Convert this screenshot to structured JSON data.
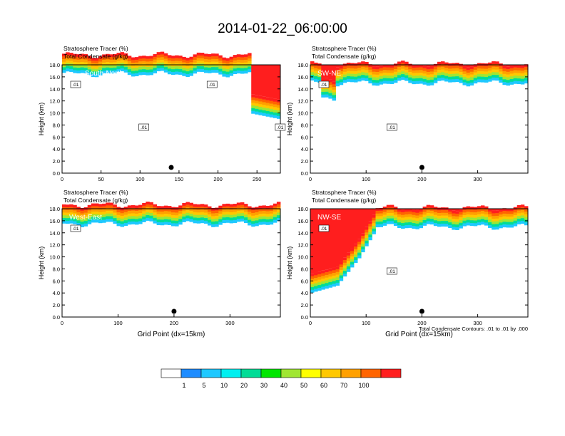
{
  "figure": {
    "title": "2014-01-22_06:00:00",
    "contour_note": "Total Condensate Contours: .01 to .01 by .000"
  },
  "colorbar": {
    "colors": [
      "#ffffff",
      "#1e8cff",
      "#1ec8ff",
      "#00f0f0",
      "#00dc96",
      "#00e600",
      "#a0e632",
      "#ffff00",
      "#ffc800",
      "#ffa000",
      "#ff6400",
      "#ff1e1e"
    ],
    "labels": [
      "1",
      "5",
      "10",
      "20",
      "30",
      "40",
      "50",
      "60",
      "70",
      "100"
    ]
  },
  "chart_data": [
    {
      "type": "heatmap",
      "title": "South-North",
      "subtitle_lines": [
        "Stratosphere Tracer   (%)",
        "Total Condensate   (g/kg)"
      ],
      "xlabel": "",
      "ylabel": "Height (km)",
      "xlim": [
        0,
        280
      ],
      "ylim": [
        0,
        18
      ],
      "xticks": [
        "0",
        "50",
        "100",
        "150",
        "200",
        "250"
      ],
      "yticks": [
        "0.0",
        "2.0",
        "4.0",
        "6.0",
        "8.0",
        "10.0",
        "12.0",
        "14.0",
        "16.0",
        "18.0"
      ],
      "marker_x": 140,
      "contour_labels": [
        ".01",
        ".01",
        ".01",
        ".01"
      ],
      "tracer_base_km": 16.5,
      "features": "stratospheric tracer 70-100% above 16.5 km; high-tracer intrusion to ~9 km near x=265-280"
    },
    {
      "type": "heatmap",
      "title": "SW-NE",
      "subtitle_lines": [
        "Stratosphere Tracer   (%)",
        "Total Condensate   (g/kg)"
      ],
      "xlabel": "",
      "ylabel": "Height (km)",
      "xlim": [
        0,
        390
      ],
      "ylim": [
        0,
        18
      ],
      "xticks": [
        "0",
        "100",
        "200",
        "300"
      ],
      "yticks": [
        "0.0",
        "2.0",
        "4.0",
        "6.0",
        "8.0",
        "10.0",
        "12.0",
        "14.0",
        "16.0",
        "18.0"
      ],
      "marker_x": 200,
      "contour_labels": [
        ".01",
        ".01"
      ],
      "tracer_base_km": 15.0,
      "features": "tracer layer 14-18 km with low-tracer patches near x=20 and x=330"
    },
    {
      "type": "heatmap",
      "title": "West-East",
      "subtitle_lines": [
        "Stratosphere Tracer   (%)",
        "Total Condensate   (g/kg)"
      ],
      "xlabel": "Grid Point (dx=15km)",
      "ylabel": "Height (km)",
      "xlim": [
        0,
        390
      ],
      "ylim": [
        0,
        18
      ],
      "xticks": [
        "0",
        "100",
        "200",
        "300"
      ],
      "yticks": [
        "0.0",
        "2.0",
        "4.0",
        "6.0",
        "8.0",
        "10.0",
        "12.0",
        "14.0",
        "16.0",
        "18.0"
      ],
      "marker_x": 200,
      "contour_labels": [
        ".01"
      ],
      "tracer_base_km": 15.5,
      "features": "tracer layer above ~15.5 km"
    },
    {
      "type": "heatmap",
      "title": "NW-SE",
      "subtitle_lines": [
        "Stratosphere Tracer   (%)",
        "Total Condensate   (g/kg)"
      ],
      "xlabel": "Grid Point (dx=15km)",
      "ylabel": "Height (km)",
      "xlim": [
        0,
        390
      ],
      "ylim": [
        0,
        18
      ],
      "xticks": [
        "0",
        "100",
        "200",
        "300"
      ],
      "yticks": [
        "0.0",
        "2.0",
        "4.0",
        "6.0",
        "8.0",
        "10.0",
        "12.0",
        "14.0",
        "16.0",
        "18.0"
      ],
      "marker_x": 200,
      "contour_labels": [
        ".01",
        ".01"
      ],
      "tracer_base_km": 15.0,
      "features": "deep tropopause fold with 70-100% tracer reaching ~4 km near x=10-40"
    }
  ]
}
